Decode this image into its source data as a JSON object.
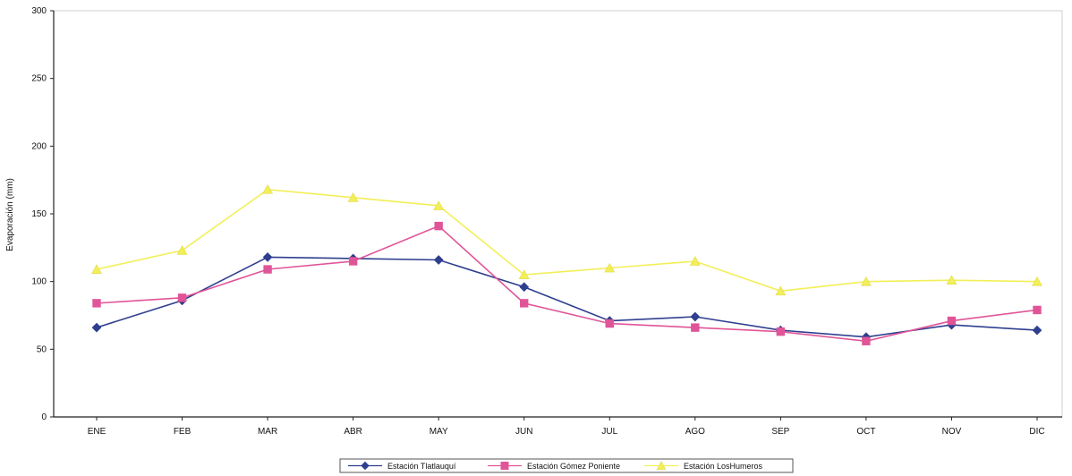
{
  "chart_data": {
    "type": "line",
    "categories": [
      "ENE",
      "FEB",
      "MAR",
      "ABR",
      "MAY",
      "JUN",
      "JUL",
      "AGO",
      "SEP",
      "OCT",
      "NOV",
      "DIC"
    ],
    "ylabel": "Evaporación (mm)",
    "xlabel": "",
    "ylim": [
      0,
      300
    ],
    "yticks": [
      "0",
      "50",
      "100",
      "150",
      "200",
      "250",
      "300"
    ],
    "grid": false,
    "legend_position": "bottom",
    "series": [
      {
        "name": "Estación Tlatlauquí",
        "color": "#2f3f8f",
        "marker": "diamond",
        "values": [
          66,
          86,
          118,
          117,
          116,
          96,
          71,
          74,
          64,
          59,
          68,
          64
        ]
      },
      {
        "name": "Estación Gómez Poniente",
        "color": "#e05598",
        "marker": "square",
        "values": [
          84,
          88,
          109,
          115,
          141,
          84,
          69,
          66,
          63,
          56,
          71,
          79
        ]
      },
      {
        "name": "Estación LosHumeros",
        "color": "#f2ef58",
        "marker": "triangle",
        "values": [
          109,
          123,
          168,
          162,
          156,
          105,
          110,
          115,
          93,
          100,
          101,
          100
        ]
      }
    ]
  }
}
